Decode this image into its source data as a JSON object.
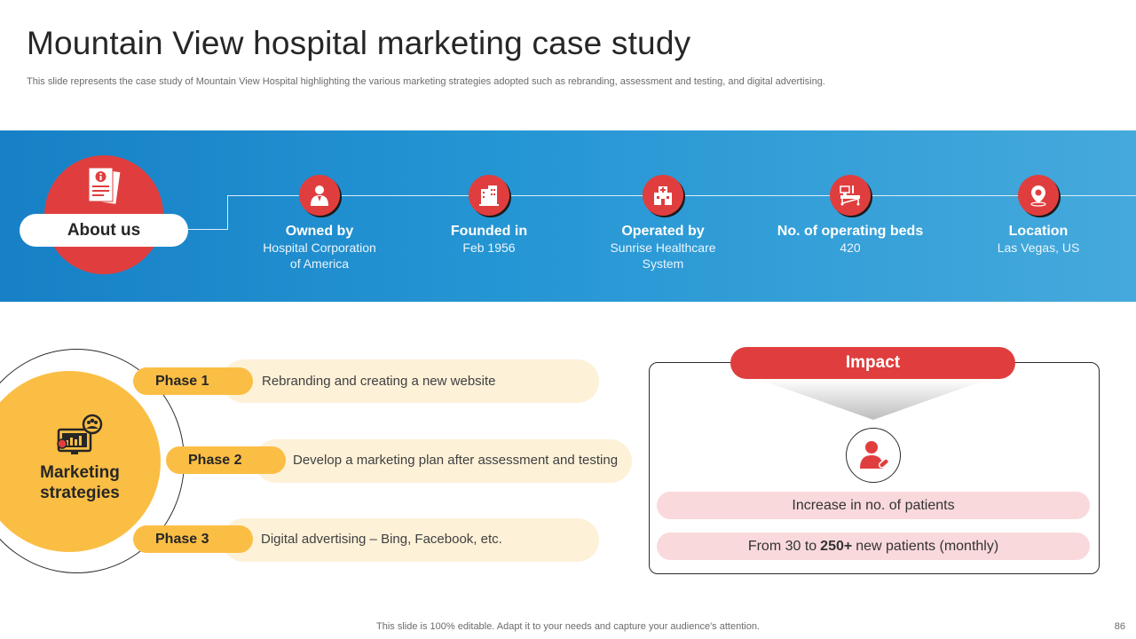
{
  "header": {
    "title": "Mountain View hospital marketing case study",
    "subtitle": "This slide represents the case study of Mountain View Hospital highlighting the various marketing strategies adopted such as rebranding, assessment and testing, and digital advertising."
  },
  "about": {
    "label": "About us",
    "icon": "document-info-icon",
    "stats": [
      {
        "label": "Owned by",
        "value_line1": "Hospital Corporation",
        "value_line2": "of America",
        "icon": "doctor-icon"
      },
      {
        "label": "Founded in",
        "value_line1": "Feb 1956",
        "value_line2": "",
        "icon": "building-icon"
      },
      {
        "label": "Operated by",
        "value_line1": "Sunrise Healthcare",
        "value_line2": "System",
        "icon": "hospital-icon"
      },
      {
        "label": "No. of operating beds",
        "value_line1": "420",
        "value_line2": "",
        "icon": "hospital-bed-icon"
      },
      {
        "label": "Location",
        "value_line1": "Las Vegas, US",
        "value_line2": "",
        "icon": "location-pin-icon"
      }
    ]
  },
  "marketing": {
    "label_line1": "Marketing",
    "label_line2": "strategies",
    "icon": "analytics-team-icon",
    "phases": [
      {
        "tag": "Phase 1",
        "text": "Rebranding and creating a new website"
      },
      {
        "tag": "Phase 2",
        "text": "Develop a marketing plan after assessment and testing"
      },
      {
        "tag": "Phase 3",
        "text": "Digital advertising – Bing, Facebook, etc."
      }
    ]
  },
  "impact": {
    "title": "Impact",
    "icon": "patient-icon",
    "line1": "Increase in no. of patients",
    "line2_prefix": "From 30 to",
    "line2_bold": "250+",
    "line2_suffix": "new patients (monthly)"
  },
  "footer": {
    "note": "This slide is 100% editable. Adapt it to your needs and capture your audience's attention.",
    "page_number": "86"
  },
  "colors": {
    "accent_red": "#e03e3e",
    "accent_yellow": "#fbbe44",
    "banner_blue": "#2596d4",
    "pale_yellow": "#fdf1d8",
    "pale_pink": "#f9d9dc"
  }
}
